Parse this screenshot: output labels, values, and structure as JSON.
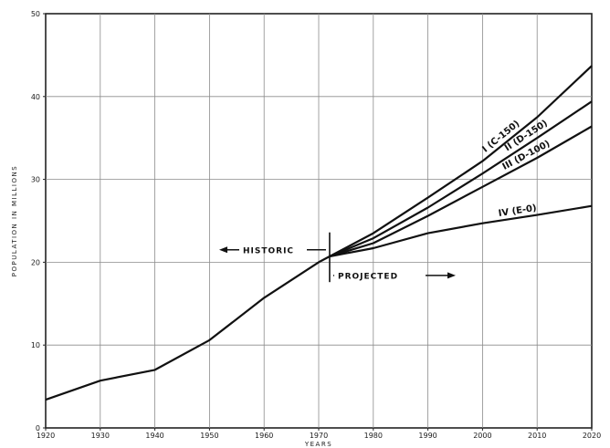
{
  "chart_data": {
    "type": "line",
    "title": "",
    "xlabel": "YEARS",
    "ylabel": "POPULATION IN MILLIONS",
    "xlim": [
      1920,
      2020
    ],
    "ylim": [
      0,
      50
    ],
    "xticks": [
      1920,
      1930,
      1940,
      1950,
      1960,
      1970,
      1980,
      1990,
      2000,
      2010,
      2020
    ],
    "xtick_labels": [
      "1920",
      "1930",
      "1940",
      "1950",
      "1960",
      "1970",
      "1980",
      "1990",
      "2000",
      "2010",
      "2020"
    ],
    "yticks": [
      0,
      10,
      20,
      30,
      40,
      50
    ],
    "ytick_labels": [
      "0",
      "10",
      "20",
      "30",
      "40",
      "50"
    ],
    "grid": true,
    "historic": {
      "x": [
        1920,
        1930,
        1940,
        1950,
        1960,
        1970,
        1972
      ],
      "y": [
        3.4,
        5.7,
        7.0,
        10.6,
        15.7,
        20.0,
        20.7
      ]
    },
    "series": [
      {
        "name": "I (C-150)",
        "x": [
          1972,
          1980,
          1990,
          2000,
          2010,
          2020
        ],
        "y": [
          20.7,
          23.5,
          27.8,
          32.2,
          37.5,
          43.7
        ]
      },
      {
        "name": "II (D-150)",
        "x": [
          1972,
          1980,
          1990,
          2000,
          2010,
          2020
        ],
        "y": [
          20.7,
          22.9,
          26.6,
          30.7,
          35.0,
          39.4
        ]
      },
      {
        "name": "III (D-100)",
        "x": [
          1972,
          1980,
          1990,
          2000,
          2010,
          2020
        ],
        "y": [
          20.7,
          22.3,
          25.6,
          29.1,
          32.6,
          36.4
        ]
      },
      {
        "name": "IV (E-0)",
        "x": [
          1972,
          1980,
          1990,
          2000,
          2010,
          2020
        ],
        "y": [
          20.7,
          21.7,
          23.5,
          24.7,
          25.7,
          26.8
        ]
      }
    ],
    "annotations": {
      "historic": "HISTORIC",
      "projected": "PROJECTED",
      "divider_year": 1972
    },
    "colors": {
      "line": "#111111",
      "grid": "#8c8c8c",
      "frame": "#222222"
    }
  }
}
